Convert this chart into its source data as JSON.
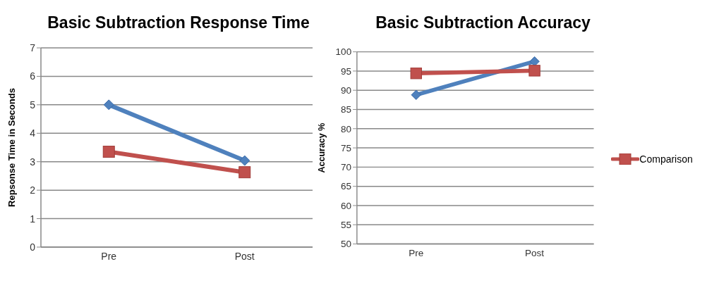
{
  "chart_data": [
    {
      "type": "line",
      "title": "Basic Subtraction Response Time",
      "ylabel": "Repsonse Time in Seconds",
      "categories": [
        "Pre",
        "Post"
      ],
      "ylim": [
        0,
        7
      ],
      "yticks": [
        0,
        1,
        2,
        3,
        4,
        5,
        6,
        7
      ],
      "grid": "y",
      "legend": false,
      "line_style": "solid",
      "series": [
        {
          "color": "#4f81bd",
          "marker": "diamond",
          "values": [
            5.0,
            3.04
          ]
        },
        {
          "color": "#c0504d",
          "marker": "square",
          "values": [
            3.35,
            2.63
          ]
        }
      ]
    },
    {
      "type": "line",
      "title": "Basic Subtraction Accuracy",
      "ylabel": "Accuracy %",
      "categories": [
        "Pre",
        "Post"
      ],
      "ylim": [
        50,
        100
      ],
      "yticks": [
        50,
        55,
        60,
        65,
        70,
        75,
        80,
        85,
        90,
        95,
        100
      ],
      "grid": "y",
      "legend": "right",
      "line_style": "solid",
      "series": [
        {
          "color": "#4f81bd",
          "marker": "diamond",
          "values": [
            88.8,
            97.5
          ]
        },
        {
          "name": "Comparison",
          "color": "#c0504d",
          "marker": "square",
          "values": [
            94.4,
            95.1
          ]
        }
      ]
    }
  ]
}
